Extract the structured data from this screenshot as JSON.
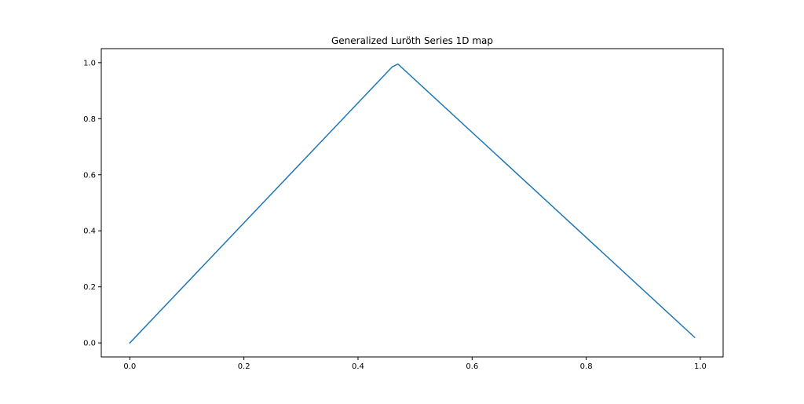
{
  "chart_data": {
    "type": "line",
    "title": "Generalized Luröth Series 1D map",
    "xlabel": "",
    "ylabel": "",
    "xlim": [
      -0.05,
      1.04
    ],
    "ylim": [
      -0.05,
      1.05
    ],
    "x_ticks": [
      0.0,
      0.2,
      0.4,
      0.6,
      0.8,
      1.0
    ],
    "x_tick_labels": [
      "0.0",
      "0.2",
      "0.4",
      "0.6",
      "0.8",
      "1.0"
    ],
    "y_ticks": [
      0.0,
      0.2,
      0.4,
      0.6,
      0.8,
      1.0
    ],
    "y_tick_labels": [
      "0.0",
      "0.2",
      "0.4",
      "0.6",
      "0.8",
      "1.0"
    ],
    "grid": false,
    "legend": false,
    "series": [
      {
        "color": "#1f77b4",
        "x": [
          0.0,
          0.46,
          0.47,
          0.99
        ],
        "y": [
          0.0,
          0.985,
          0.995,
          0.02
        ]
      }
    ]
  }
}
